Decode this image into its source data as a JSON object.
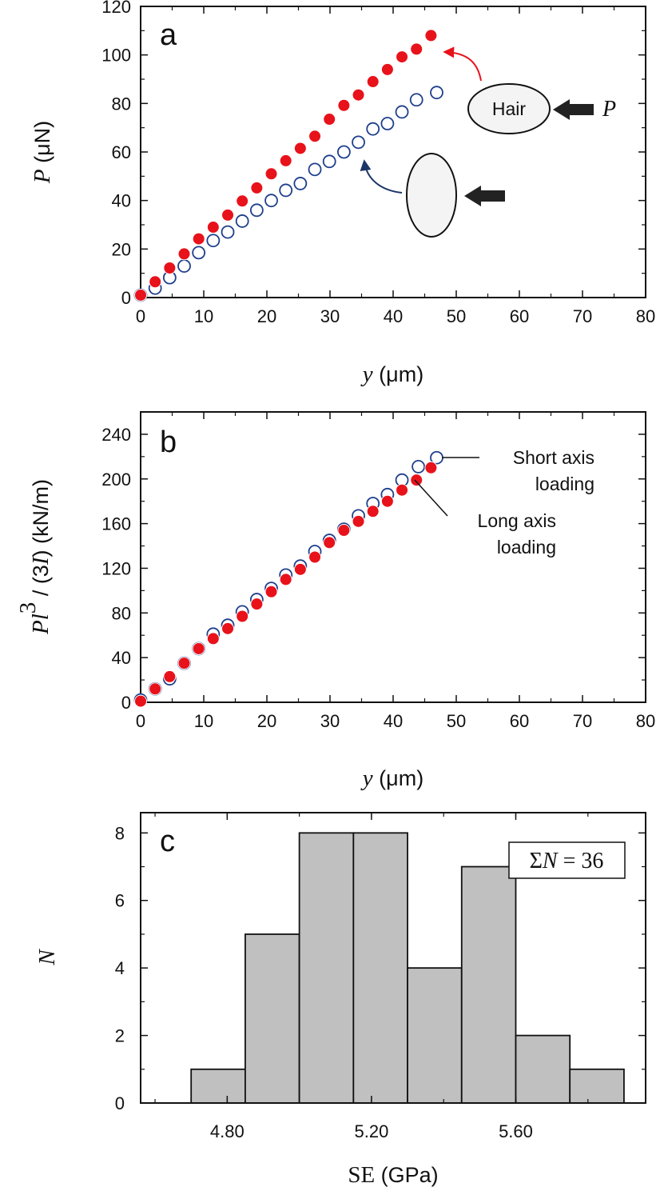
{
  "colors": {
    "filled_marker": "#e8121b",
    "open_marker": "#1f3f8c",
    "bar_fill": "#c0c0c0",
    "arrow_red": "#e8121b",
    "arrow_navy": "#1b3566",
    "load_arrow": "#222222"
  },
  "chart_data": [
    {
      "panel": "a",
      "type": "scatter",
      "panel_label": "a",
      "xlim": [
        0,
        80
      ],
      "ylim": [
        0,
        120
      ],
      "x_ticks": [
        "0",
        "10",
        "20",
        "30",
        "40",
        "50",
        "60",
        "70",
        "80"
      ],
      "y_ticks": [
        "0",
        "20",
        "40",
        "60",
        "80",
        "100",
        "120"
      ],
      "xlabel": {
        "italic": "y",
        "rest": " (μm)"
      },
      "ylabel": {
        "italic": "P",
        "rest": " (μN)"
      },
      "series": [
        {
          "marker": "filled",
          "x": [
            0,
            2.3,
            4.6,
            6.9,
            9.2,
            11.5,
            13.8,
            16.1,
            18.4,
            20.7,
            23.0,
            25.3,
            27.6,
            29.9,
            32.2,
            34.5,
            36.8,
            39.1,
            41.4,
            43.7,
            46.0
          ],
          "y": [
            1,
            6.5,
            12.2,
            18,
            24.2,
            29,
            34,
            39.8,
            45.2,
            51,
            56.4,
            61.5,
            66.5,
            73.5,
            79.2,
            83.5,
            89,
            94,
            99.2,
            102.4,
            108
          ]
        },
        {
          "marker": "open",
          "x": [
            0,
            2.3,
            4.6,
            6.9,
            9.2,
            11.5,
            13.8,
            16.1,
            18.4,
            20.7,
            23.0,
            25.3,
            27.6,
            29.9,
            32.2,
            34.5,
            36.8,
            39.1,
            41.4,
            43.7,
            46.9
          ],
          "y": [
            1,
            3.9,
            8.2,
            13,
            18.5,
            23.5,
            27,
            31.5,
            36,
            40,
            44.2,
            47,
            52.8,
            56.1,
            60,
            64,
            69.5,
            71.7,
            76.5,
            81.5,
            84.5
          ]
        }
      ],
      "inset": {
        "hair_label": "Hair",
        "load_label": "P"
      }
    },
    {
      "panel": "b",
      "type": "scatter",
      "panel_label": "b",
      "xlim": [
        0,
        80
      ],
      "ylim": [
        0,
        260
      ],
      "x_ticks": [
        "0",
        "10",
        "20",
        "30",
        "40",
        "50",
        "60",
        "70",
        "80"
      ],
      "y_ticks": [
        "0",
        "40",
        "80",
        "120",
        "160",
        "200",
        "240"
      ],
      "xlabel": {
        "italic": "y",
        "rest": " (μm)"
      },
      "ylabel": {
        "italic_p": "Pl",
        "sup": "3",
        "mid": " / (3",
        "italic_i": "I",
        "rest": ") (kN/m)"
      },
      "series": [
        {
          "name": "Short axis loading",
          "marker": "open",
          "x": [
            0,
            2.3,
            4.6,
            6.9,
            9.2,
            11.5,
            13.8,
            16.1,
            18.4,
            20.7,
            23.0,
            25.3,
            27.6,
            29.9,
            32.2,
            34.5,
            36.8,
            39.1,
            41.4,
            44.0,
            46.9
          ],
          "y": [
            2,
            12,
            21,
            35,
            48,
            61,
            69,
            81,
            92,
            102,
            114,
            122,
            135,
            145,
            155,
            167,
            178,
            186,
            199,
            211,
            219
          ]
        },
        {
          "name": "Long axis loading",
          "marker": "filled",
          "x": [
            0,
            2.3,
            4.6,
            6.9,
            9.2,
            11.5,
            13.8,
            16.1,
            18.4,
            20.7,
            23.0,
            25.3,
            27.6,
            29.9,
            32.2,
            34.5,
            36.8,
            39.1,
            41.4,
            43.7,
            46.0
          ],
          "y": [
            1,
            12,
            23,
            35,
            48,
            57,
            66,
            77,
            88,
            99,
            110,
            119,
            130,
            143,
            154,
            162,
            171,
            180,
            190,
            199,
            210
          ]
        }
      ],
      "annotations": {
        "short_line1": "Short axis",
        "short_line2": "loading",
        "long_line1": "Long axis",
        "long_line2": "loading"
      }
    },
    {
      "panel": "c",
      "type": "bar",
      "panel_label": "c",
      "xlim": [
        4.56,
        5.96
      ],
      "ylim": [
        0,
        8.6
      ],
      "x_ticks": [
        "4.80",
        "5.20",
        "5.60"
      ],
      "y_ticks": [
        "0",
        "2",
        "4",
        "6",
        "8"
      ],
      "xlabel": {
        "serif": "SE",
        "rest": " (GPa)"
      },
      "ylabel": {
        "italic": "N"
      },
      "bins": [
        {
          "from": 4.7,
          "to": 4.85,
          "count": 1
        },
        {
          "from": 4.85,
          "to": 5.0,
          "count": 5
        },
        {
          "from": 5.0,
          "to": 5.15,
          "count": 8
        },
        {
          "from": 5.15,
          "to": 5.3,
          "count": 8
        },
        {
          "from": 5.3,
          "to": 5.45,
          "count": 4
        },
        {
          "from": 5.45,
          "to": 5.6,
          "count": 7
        },
        {
          "from": 5.6,
          "to": 5.75,
          "count": 2
        },
        {
          "from": 5.75,
          "to": 5.9,
          "count": 1
        }
      ],
      "legend_box": {
        "sigma": "Σ",
        "italic": "N",
        "rest": " = 36"
      }
    }
  ]
}
